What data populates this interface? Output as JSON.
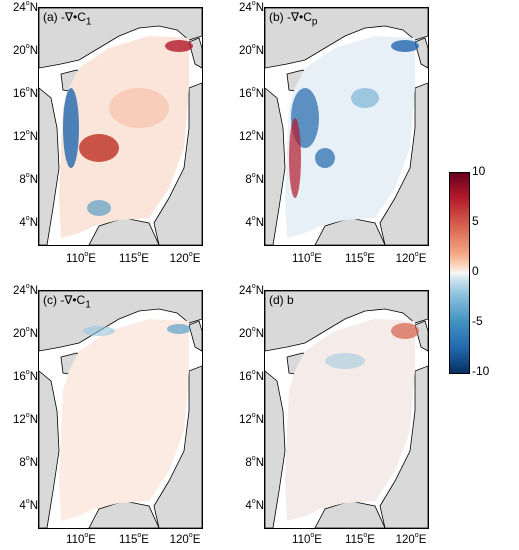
{
  "panels": [
    {
      "label": "(a) -∇•C",
      "sub": "1"
    },
    {
      "label": "(b) -∇•C",
      "sub": "p"
    },
    {
      "label": "(c) -∇•C",
      "sub": "1"
    },
    {
      "label": "(d) b",
      "sub": ""
    }
  ],
  "lat_ticks": [
    {
      "deg": "24",
      "hem": "N"
    },
    {
      "deg": "20",
      "hem": "N"
    },
    {
      "deg": "16",
      "hem": "N"
    },
    {
      "deg": "12",
      "hem": "N"
    },
    {
      "deg": "8",
      "hem": "N"
    },
    {
      "deg": "4",
      "hem": "N"
    }
  ],
  "lon_ticks": [
    {
      "deg": "110",
      "hem": "E"
    },
    {
      "deg": "115",
      "hem": "E"
    },
    {
      "deg": "120",
      "hem": "E"
    }
  ],
  "colorbar": {
    "ticks": [
      "10",
      "5",
      "0",
      "-5",
      "-10"
    ],
    "min": -10,
    "max": 10,
    "colors": [
      "#053061",
      "#2166ac",
      "#4393c3",
      "#92c5de",
      "#f7f7f7",
      "#f4a582",
      "#d6604d",
      "#b2182b",
      "#67001f"
    ]
  },
  "land_color": "#d9d9d9"
}
